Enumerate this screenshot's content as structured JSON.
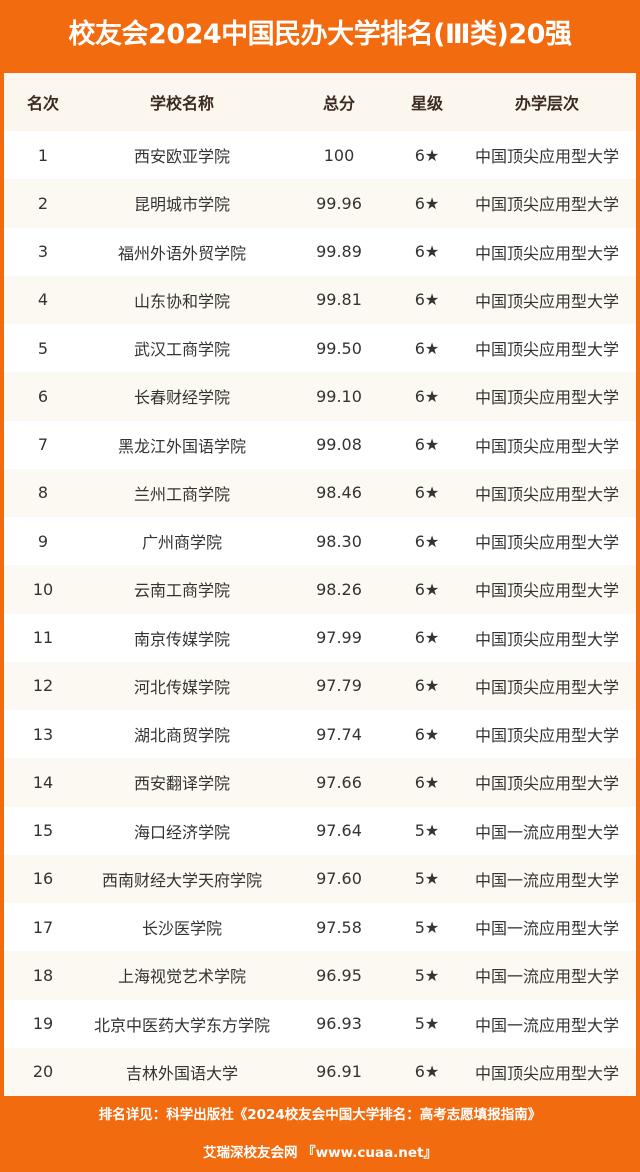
{
  "title": "校友会2024中国民办大学排名(Ⅲ类)20强",
  "headers": [
    "名次",
    "学校名称",
    "总分",
    "星级",
    "办学层次"
  ],
  "rows": [
    [
      "1",
      "西安欧亚学院",
      "100",
      "6★",
      "中国顶尖应用型大学"
    ],
    [
      "2",
      "昆明城市学院",
      "99.96",
      "6★",
      "中国顶尖应用型大学"
    ],
    [
      "3",
      "福州外语外贸学院",
      "99.89",
      "6★",
      "中国顶尖应用型大学"
    ],
    [
      "4",
      "山东协和学院",
      "99.81",
      "6★",
      "中国顶尖应用型大学"
    ],
    [
      "5",
      "武汉工商学院",
      "99.50",
      "6★",
      "中国顶尖应用型大学"
    ],
    [
      "6",
      "长春财经学院",
      "99.10",
      "6★",
      "中国顶尖应用型大学"
    ],
    [
      "7",
      "黑龙江外国语学院",
      "99.08",
      "6★",
      "中国顶尖应用型大学"
    ],
    [
      "8",
      "兰州工商学院",
      "98.46",
      "6★",
      "中国顶尖应用型大学"
    ],
    [
      "9",
      "广州商学院",
      "98.30",
      "6★",
      "中国顶尖应用型大学"
    ],
    [
      "10",
      "云南工商学院",
      "98.26",
      "6★",
      "中国顶尖应用型大学"
    ],
    [
      "11",
      "南京传媒学院",
      "97.99",
      "6★",
      "中国顶尖应用型大学"
    ],
    [
      "12",
      "河北传媒学院",
      "97.79",
      "6★",
      "中国顶尖应用型大学"
    ],
    [
      "13",
      "湖北商贸学院",
      "97.74",
      "6★",
      "中国顶尖应用型大学"
    ],
    [
      "14",
      "西安翻译学院",
      "97.66",
      "6★",
      "中国顶尖应用型大学"
    ],
    [
      "15",
      "海口经济学院",
      "97.64",
      "5★",
      "中国一流应用型大学"
    ],
    [
      "16",
      "西南财经大学天府学院",
      "97.60",
      "5★",
      "中国一流应用型大学"
    ],
    [
      "17",
      "长沙医学院",
      "97.58",
      "5★",
      "中国一流应用型大学"
    ],
    [
      "18",
      "上海视觉艺术学院",
      "96.95",
      "5★",
      "中国一流应用型大学"
    ],
    [
      "19",
      "北京中医药大学东方学院",
      "96.93",
      "5★",
      "中国一流应用型大学"
    ],
    [
      "20",
      "吉林外国语大学",
      "96.91",
      "6★",
      "中国顶尖应用型大学"
    ]
  ],
  "footer": {
    "line1": "排名详见：科学出版社《2024校友会中国大学排名：高考志愿填报指南》",
    "line2": "艾瑞深校友会网 『www.cuaa.net』"
  },
  "colors": {
    "brand": "#f26b0f"
  }
}
